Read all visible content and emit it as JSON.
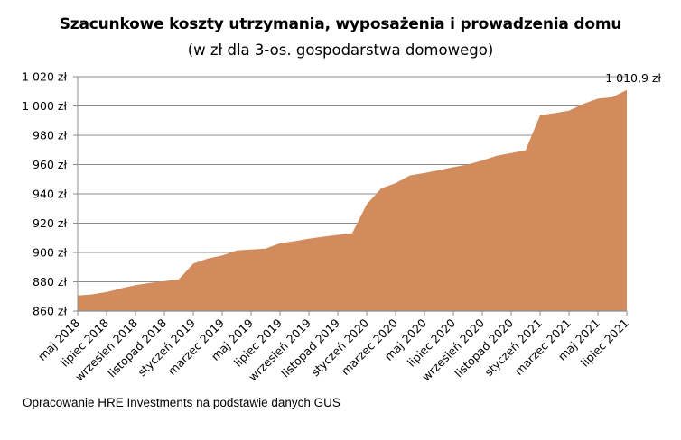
{
  "chart_data": {
    "type": "area",
    "title": "Szacunkowe koszty utrzymania, wyposażenia i prowadzenia domu",
    "subtitle": "(w zł dla 3-os. gospodarstwa domowego)",
    "xlabel": "",
    "ylabel": "",
    "ylim": [
      860,
      1020
    ],
    "yticks": [
      860,
      880,
      900,
      920,
      940,
      960,
      980,
      1000,
      1020
    ],
    "ytick_labels": [
      "860 zł",
      "880 zł",
      "900 zł",
      "920 zł",
      "940 zł",
      "960 zł",
      "980 zł",
      "1 000 zł",
      "1 020 zł"
    ],
    "grid": true,
    "legend": "none",
    "fill_color": "#D18B5C",
    "categories": [
      "maj 2018",
      "czerwiec 2018",
      "lipiec 2018",
      "sierpień 2018",
      "wrzesień 2018",
      "październik 2018",
      "listopad 2018",
      "grudzień 2018",
      "styczeń 2019",
      "luty 2019",
      "marzec 2019",
      "kwiecień 2019",
      "maj 2019",
      "czerwiec 2019",
      "lipiec 2019",
      "sierpień 2019",
      "wrzesień 2019",
      "październik 2019",
      "listopad 2019",
      "grudzień 2019",
      "styczeń 2020",
      "luty 2020",
      "marzec 2020",
      "kwiecień 2020",
      "maj 2020",
      "czerwiec 2020",
      "lipiec 2020",
      "sierpień 2020",
      "wrzesień 2020",
      "październik 2020",
      "listopad 2020",
      "grudzień 2020",
      "styczeń 2021",
      "luty 2021",
      "marzec 2021",
      "kwiecień 2021",
      "maj 2021",
      "czerwiec 2021",
      "lipiec 2021"
    ],
    "x_tick_labels": [
      "maj 2018",
      "lipiec 2018",
      "wrzesień 2018",
      "listopad 2018",
      "styczeń 2019",
      "marzec 2019",
      "maj 2019",
      "lipiec 2019",
      "wrzesień 2019",
      "listopad 2019",
      "styczeń 2020",
      "marzec 2020",
      "maj 2020",
      "lipiec 2020",
      "wrzesień 2020",
      "listopad 2020",
      "styczeń 2021",
      "marzec 2021",
      "maj 2021",
      "lipiec 2021"
    ],
    "values": [
      870.6,
      871.4,
      873.0,
      875.5,
      877.7,
      879.2,
      880.5,
      881.7,
      892.4,
      895.9,
      897.9,
      901.4,
      902.0,
      902.6,
      906.3,
      907.7,
      909.4,
      910.8,
      912.0,
      913.2,
      932.8,
      943.7,
      947.3,
      952.6,
      954.2,
      956.2,
      958.2,
      960.0,
      962.8,
      966.0,
      967.9,
      969.8,
      993.7,
      995.1,
      996.8,
      1001.5,
      1005.0,
      1006.0,
      1010.9
    ],
    "annotations": [
      {
        "category": "lipiec 2021",
        "text": "1 010,9 zł"
      }
    ]
  },
  "footer": {
    "source": "Opracowanie HRE Investments na podstawie danych GUS"
  }
}
